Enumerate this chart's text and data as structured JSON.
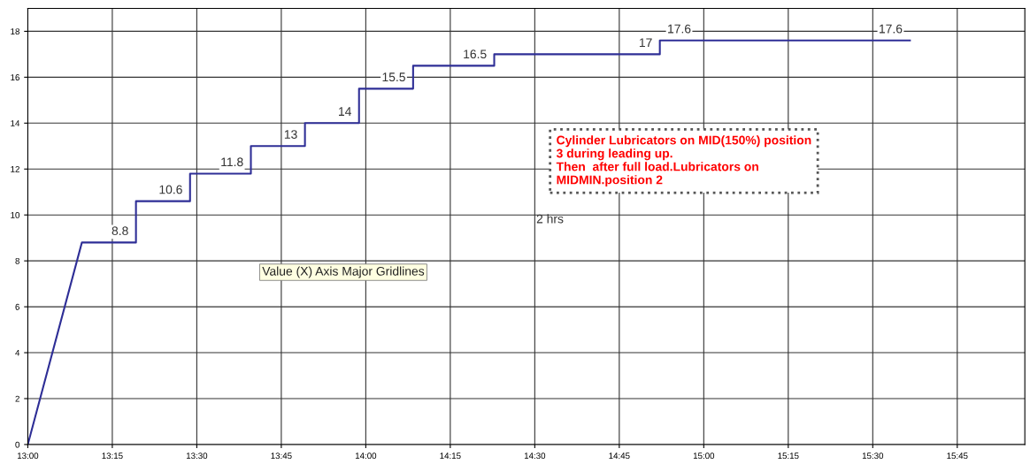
{
  "chart_data": {
    "type": "line",
    "x": [
      13,
      13.16,
      13.32,
      13.32,
      13.48,
      13.48,
      13.66,
      13.66,
      13.82,
      13.82,
      13.98,
      13.98,
      14.14,
      14.14,
      14.38,
      14.38,
      14.87,
      14.87,
      15.61
    ],
    "series": [
      {
        "color": "#2e2e96",
        "values": [
          0,
          8.8,
          8.8,
          10.6,
          10.6,
          11.8,
          11.8,
          13,
          13,
          14,
          14,
          15.5,
          15.5,
          16.5,
          16.5,
          17,
          17,
          17.6,
          17.6
        ],
        "value_labels": [
          null,
          null,
          "8.8",
          null,
          "10.6",
          null,
          "11.8",
          null,
          "13",
          null,
          "14",
          null,
          "15.5",
          null,
          "16.5",
          null,
          "17",
          "17.6",
          "17.6"
        ]
      }
    ],
    "xlim": [
      13,
      15.95
    ],
    "xticks": [
      {
        "value": 13,
        "label": "13:00"
      },
      {
        "value": 13.25,
        "label": "13:15"
      },
      {
        "value": 13.5,
        "label": "13:30"
      },
      {
        "value": 13.75,
        "label": "13:45"
      },
      {
        "value": 14,
        "label": "14:00"
      },
      {
        "value": 14.25,
        "label": "14:15"
      },
      {
        "value": 14.5,
        "label": "14:30"
      },
      {
        "value": 14.75,
        "label": "14:45"
      },
      {
        "value": 15,
        "label": "15:00"
      },
      {
        "value": 15.25,
        "label": "15:15"
      },
      {
        "value": 15.5,
        "label": "15:30"
      },
      {
        "value": 15.75,
        "label": "15:45"
      }
    ],
    "ylim": [
      0,
      19
    ],
    "yticks": [
      0,
      2,
      4,
      6,
      8,
      10,
      12,
      14,
      16,
      18
    ],
    "grid": true,
    "marker": "none",
    "line_style": "solid",
    "annotations": [
      "Cylinder Lubricators on MID(150%) position\n3 during leading up.\nThen  after full load.Lubricators on\nMIDMIN.position 2",
      "2 hrs",
      "Value (X) Axis Major Gridlines"
    ]
  }
}
